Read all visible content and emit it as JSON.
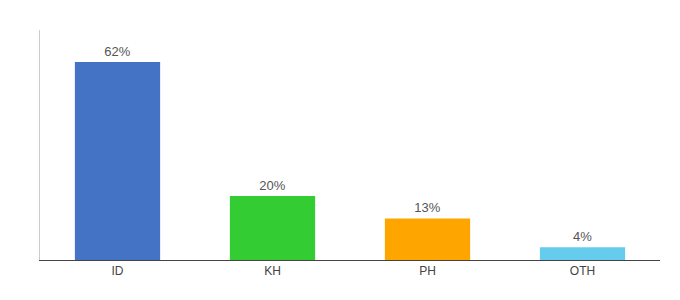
{
  "chart_data": {
    "type": "bar",
    "categories": [
      "ID",
      "KH",
      "PH",
      "OTH"
    ],
    "values": [
      62,
      20,
      13,
      4
    ],
    "value_labels": [
      "62%",
      "20%",
      "13%",
      "4%"
    ],
    "data_labels": true,
    "colors": [
      "#4472C4",
      "#33CC33",
      "#FFA500",
      "#66CCEE"
    ],
    "ylim": [
      0,
      72
    ],
    "grid": false,
    "tick_labels": "x"
  }
}
